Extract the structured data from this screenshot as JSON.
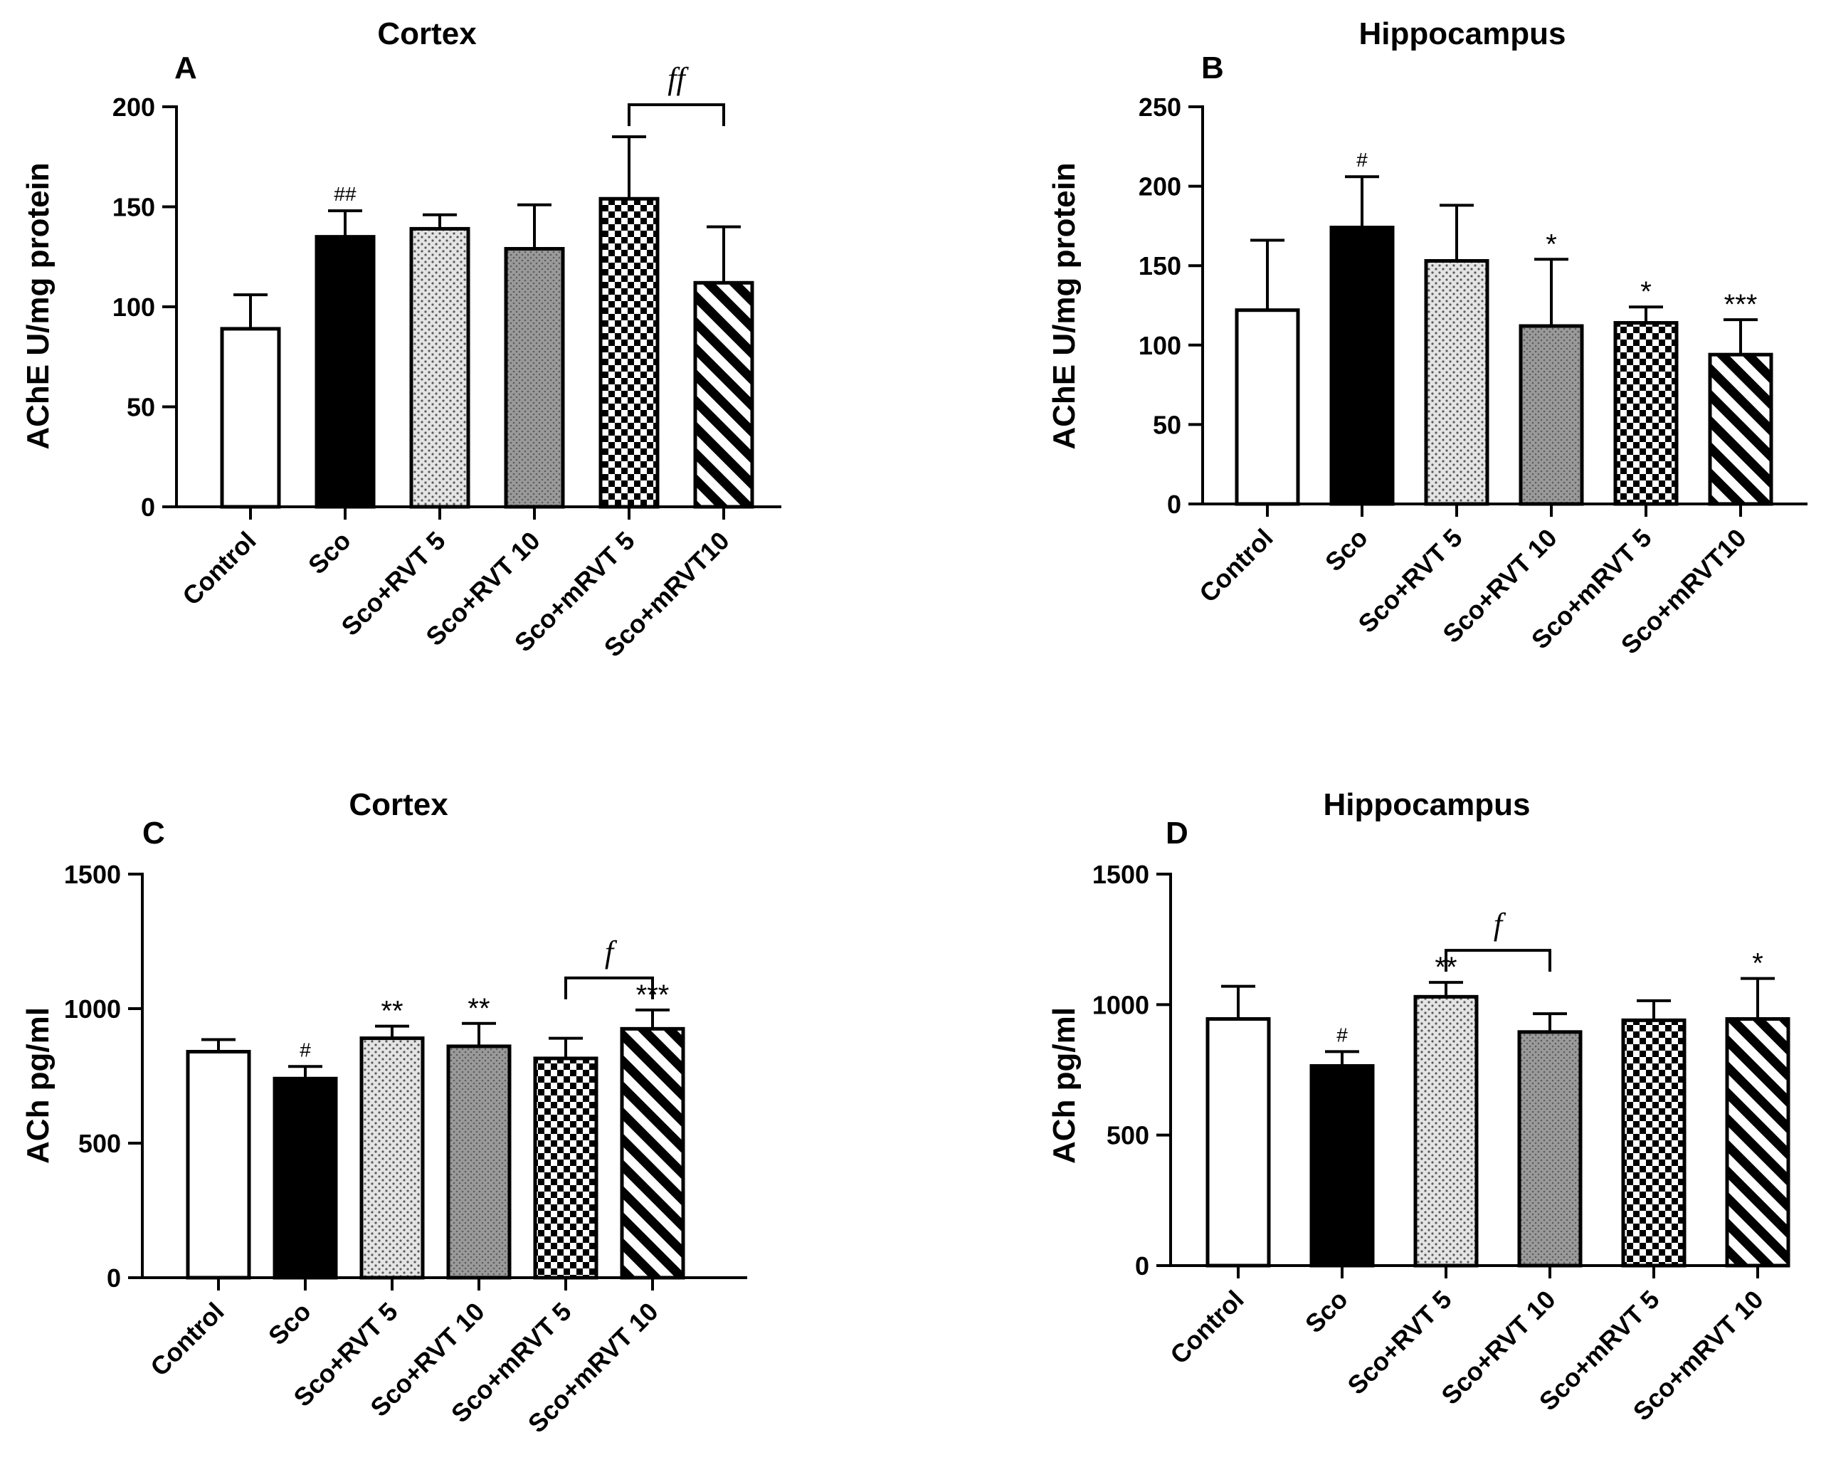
{
  "figure": {
    "panels": [
      {
        "id": "A",
        "panel_label": "A",
        "chart_data": {
          "type": "bar",
          "title": "Cortex",
          "xlabel": "",
          "ylabel": "AChE U/mg protein",
          "ylim": [
            0,
            200
          ],
          "yticks": [
            0,
            50,
            100,
            150,
            200
          ],
          "categories": [
            "Control",
            "Sco",
            "Sco+RVT 5",
            "Sco+RVT 10",
            "Sco+mRVT 5",
            "Sco+mRVT10"
          ],
          "values": [
            89,
            135,
            139,
            129,
            154,
            112
          ],
          "errors": [
            17,
            13,
            7,
            22,
            31,
            28
          ],
          "bar_annotations": [
            "",
            "##",
            "",
            "",
            "",
            ""
          ],
          "comparison": {
            "from": 4,
            "to": 5,
            "label": "ff"
          }
        }
      },
      {
        "id": "B",
        "panel_label": "B",
        "chart_data": {
          "type": "bar",
          "title": "Hippocampus",
          "xlabel": "",
          "ylabel": "AChE U/mg protein",
          "ylim": [
            0,
            250
          ],
          "yticks": [
            0,
            50,
            100,
            150,
            200,
            250
          ],
          "categories": [
            "Control",
            "Sco",
            "Sco+RVT 5",
            "Sco+RVT 10",
            "Sco+mRVT 5",
            "Sco+mRVT10"
          ],
          "values": [
            122,
            174,
            153,
            112,
            114,
            94
          ],
          "errors": [
            44,
            32,
            35,
            42,
            10,
            22
          ],
          "bar_annotations": [
            "",
            "#",
            "",
            "*",
            "*",
            "***"
          ],
          "comparison": null
        }
      },
      {
        "id": "C",
        "panel_label": "C",
        "chart_data": {
          "type": "bar",
          "title": "Cortex",
          "xlabel": "",
          "ylabel": "ACh pg/ml",
          "ylim": [
            0,
            1500
          ],
          "yticks": [
            0,
            500,
            1000,
            1500
          ],
          "categories": [
            "Control",
            "Sco",
            "Sco+RVT 5",
            "Sco+RVT 10",
            "Sco+mRVT 5",
            "Sco+mRVT 10"
          ],
          "values": [
            840,
            740,
            890,
            860,
            815,
            925
          ],
          "errors": [
            45,
            45,
            45,
            85,
            75,
            70
          ],
          "bar_annotations": [
            "",
            "#",
            "**",
            "**",
            "",
            "***"
          ],
          "comparison": {
            "from": 4,
            "to": 5,
            "label": "f"
          }
        }
      },
      {
        "id": "D",
        "panel_label": "D",
        "chart_data": {
          "type": "bar",
          "title": "Hippocampus",
          "xlabel": "",
          "ylabel": "ACh pg/ml",
          "ylim": [
            0,
            1500
          ],
          "yticks": [
            0,
            500,
            1000,
            1500
          ],
          "categories": [
            "Control",
            "Sco",
            "Sco+RVT 5",
            "Sco+RVT 10",
            "Sco+mRVT 5",
            "Sco+mRVT 10"
          ],
          "values": [
            945,
            765,
            1030,
            895,
            940,
            945
          ],
          "errors": [
            125,
            55,
            55,
            70,
            75,
            155
          ],
          "bar_annotations": [
            "",
            "#",
            "**",
            "",
            "",
            "*"
          ],
          "comparison": {
            "from": 2,
            "to": 3,
            "label": "f"
          }
        }
      }
    ]
  }
}
